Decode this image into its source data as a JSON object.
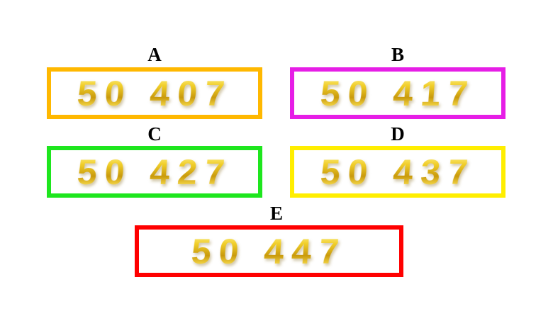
{
  "options": [
    {
      "letter": "A",
      "value": "50 407",
      "color": "#FFB800"
    },
    {
      "letter": "B",
      "value": "50 417",
      "color": "#E61EE6"
    },
    {
      "letter": "C",
      "value": "50 427",
      "color": "#1EE61E"
    },
    {
      "letter": "D",
      "value": "50 437",
      "color": "#FFEE00"
    },
    {
      "letter": "E",
      "value": "50 447",
      "color": "#FF0000"
    }
  ]
}
